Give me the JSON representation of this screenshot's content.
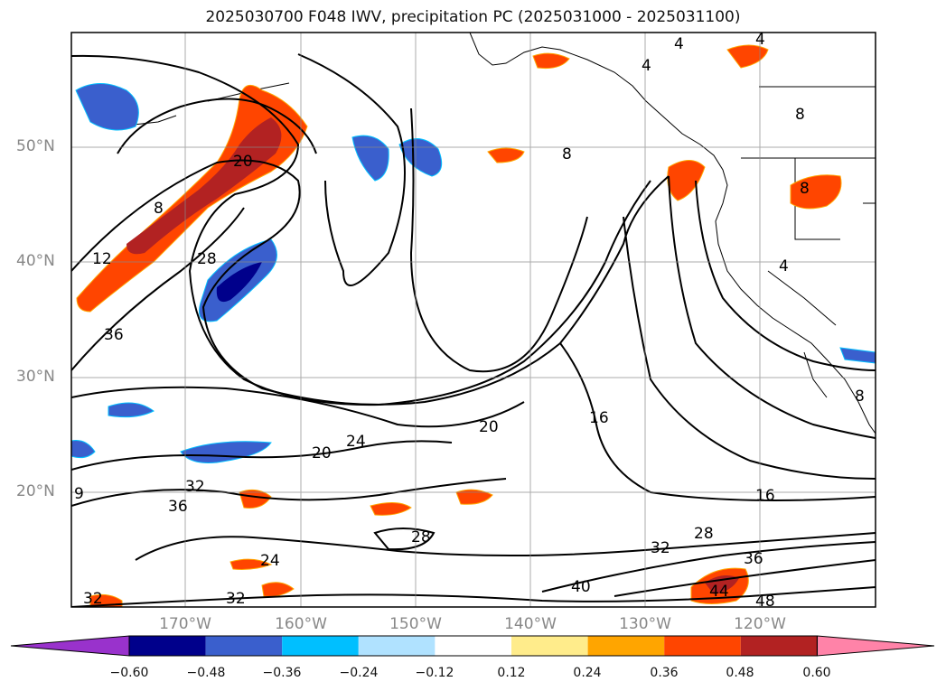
{
  "title": "2025030700 F048 IWV, precipitation PC (2025031000 - 2025031100)",
  "map": {
    "lat_labels": [
      "50°N",
      "40°N",
      "30°N",
      "20°N"
    ],
    "lon_labels": [
      "170°W",
      "160°W",
      "150°W",
      "140°W",
      "130°W",
      "120°W"
    ],
    "grid": true,
    "contour_labels": [
      "4",
      "4",
      "4",
      "8",
      "8",
      "8",
      "8",
      "8",
      "4",
      "12",
      "20",
      "28",
      "36",
      "20",
      "24",
      "20",
      "16",
      "16",
      "28",
      "28",
      "32",
      "32",
      "36",
      "36",
      "40",
      "44",
      "48",
      "24",
      "32",
      "32",
      "9"
    ]
  },
  "colorbar": {
    "ticks": [
      "−0.60",
      "−0.48",
      "−0.36",
      "−0.24",
      "−0.12",
      "0.12",
      "0.24",
      "0.36",
      "0.48",
      "0.60"
    ],
    "colors": [
      "#9932cc",
      "#00008b",
      "#3a5fcd",
      "#00bfff",
      "#b0e2ff",
      "#ffffff",
      "#ffec8b",
      "#ffa500",
      "#ff4500",
      "#b22222",
      "#ff83a8"
    ]
  }
}
